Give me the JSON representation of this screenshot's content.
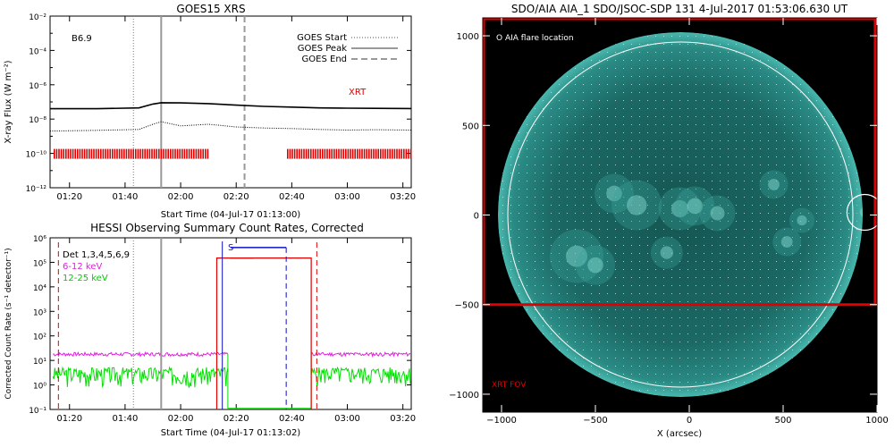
{
  "chart_data": [
    {
      "type": "line",
      "title": "GOES15 XRS",
      "xlabel": "Start Time (04-Jul-17 01:13:00)",
      "ylabel": "X-ray Flux (W m⁻²)",
      "x_ticks": [
        "01:20",
        "01:40",
        "02:00",
        "02:20",
        "02:40",
        "03:00",
        "03:20"
      ],
      "y_ticks": [
        "10⁻²",
        "10⁻⁴",
        "10⁻⁶",
        "10⁻⁸",
        "10⁻¹⁰",
        "10⁻¹²"
      ],
      "xlim": [
        "01:13",
        "03:23"
      ],
      "ylim": [
        1e-12,
        0.01
      ],
      "yscale": "log",
      "annotation": "B6.9",
      "legend": [
        "GOES Start",
        "GOES Peak",
        "GOES End"
      ],
      "markers": {
        "goes_start": "01:43",
        "goes_peak": "01:53",
        "goes_end": "02:23"
      },
      "xrt_label": "XRT",
      "xrt_coverage": [
        [
          "01:13",
          "02:10"
        ],
        [
          "02:37",
          "03:23"
        ]
      ],
      "series": [
        {
          "x": [
            "01:13",
            "01:30",
            "01:45",
            "01:50",
            "01:53",
            "02:00",
            "02:10",
            "02:20",
            "02:30",
            "02:40",
            "02:50",
            "03:00",
            "03:10",
            "03:23"
          ],
          "values": [
            4e-08,
            4e-08,
            4.5e-08,
            7.5e-08,
            9e-08,
            8.8e-08,
            8e-08,
            6.5e-08,
            5.5e-08,
            5e-08,
            4.5e-08,
            4.3e-08,
            4.2e-08,
            4.1e-08
          ]
        },
        {
          "x": [
            "01:13",
            "01:30",
            "01:45",
            "01:50",
            "01:53",
            "02:00",
            "02:10",
            "02:20",
            "02:30",
            "02:40",
            "02:50",
            "03:00",
            "03:10",
            "03:23"
          ],
          "values": [
            2e-09,
            2.2e-09,
            2.5e-09,
            5e-09,
            7e-09,
            4e-09,
            5e-09,
            3.5e-09,
            3e-09,
            2.8e-09,
            2.5e-09,
            2.3e-09,
            2.4e-09,
            2.3e-09
          ]
        }
      ]
    },
    {
      "type": "line",
      "title": "HESSI Observing Summary Count Rates, Corrected",
      "xlabel": "Start Time (04-Jul-17 01:13:02)",
      "ylabel": "Corrected Count Rate (s⁻¹ detector⁻¹)",
      "x_ticks": [
        "01:20",
        "01:40",
        "02:00",
        "02:20",
        "02:40",
        "03:00",
        "03:20"
      ],
      "y_ticks": [
        "10⁶",
        "10⁵",
        "10⁴",
        "10³",
        "10²",
        "10¹",
        "10⁰",
        "10⁻¹"
      ],
      "xlim": [
        "01:13",
        "03:23"
      ],
      "ylim": [
        0.1,
        1000000
      ],
      "yscale": "log",
      "legend": [
        {
          "label": "Det 1,3,4,5,6,9",
          "color": "#000000"
        },
        {
          "label": "6-12 keV",
          "color": "#e020e0"
        },
        {
          "label": "12-25 keV",
          "color": "#00e000"
        }
      ],
      "saa_label": "S",
      "night_intervals": [
        [
          "01:16",
          "02:13"
        ],
        [
          "02:30",
          "03:23"
        ]
      ],
      "data_gap": [
        "02:17",
        "02:47"
      ],
      "series": [
        {
          "name": "6-12 keV",
          "values_level": 18
        },
        {
          "name": "12-25 keV",
          "values_level": 3
        }
      ]
    },
    {
      "type": "heatmap",
      "title": "SDO/AIA AIA_1 SDO/JSOC-SDP 131  4-Jul-2017 01:53:06.630 UT",
      "xlabel": "X (arcsec)",
      "ylabel": "",
      "x_ticks": [
        "−1000",
        "−500",
        "0",
        "500",
        "1000"
      ],
      "y_ticks": [
        "1000",
        "500",
        "0",
        "−500",
        "−1000"
      ],
      "xlim": [
        -1100,
        1000
      ],
      "ylim": [
        -1100,
        1100
      ],
      "legend": "O AIA flare location",
      "fov_label": "XRT FOV",
      "xrt_fov": {
        "x": [
          -1100,
          990
        ],
        "y": [
          -500,
          1100
        ]
      },
      "flare_location": {
        "x": 935,
        "y": 15
      },
      "colors": {
        "disk": "#1f6f6b",
        "limb": "#ffffff",
        "fov": "#e00000",
        "flare": "#ffffff"
      }
    }
  ]
}
